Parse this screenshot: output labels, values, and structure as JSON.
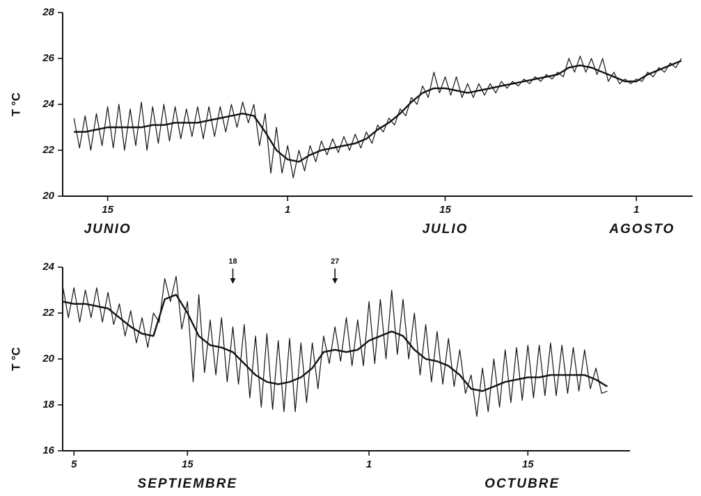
{
  "chart_data": [
    {
      "type": "line",
      "ylabel": "T °C",
      "xlim": [
        11,
        67
      ],
      "ylim": [
        20,
        28
      ],
      "xticks": [
        15,
        {
          "value": 31,
          "label": "1"
        },
        {
          "value": 45,
          "label": "15"
        },
        {
          "value": 62,
          "label": "1"
        }
      ],
      "yticks": [
        20,
        22,
        24,
        26,
        28
      ],
      "months": [
        {
          "value": 15,
          "label": "JUNIO"
        },
        {
          "value": 45,
          "label": "JULIO"
        },
        {
          "value": 62.5,
          "label": "AGOSTO"
        }
      ],
      "series": [
        {
          "color": "#111111",
          "x": [
            12,
            12.5,
            13,
            13.5,
            14,
            14.5,
            15,
            15.5,
            16,
            16.5,
            17,
            17.5,
            18,
            18.5,
            19,
            19.5,
            20,
            20.5,
            21,
            21.5,
            22,
            22.5,
            23,
            23.5,
            24,
            24.5,
            25,
            25.5,
            26,
            26.5,
            27,
            27.5,
            28,
            28.5,
            29,
            29.5,
            30,
            30.5,
            31,
            31.5,
            32,
            32.5,
            33,
            33.5,
            34,
            34.5,
            35,
            35.5,
            36,
            36.5,
            37,
            37.5,
            38,
            38.5,
            39,
            39.5,
            40,
            40.5,
            41,
            41.5,
            42,
            42.5,
            43,
            43.5,
            44,
            44.5,
            45,
            45.5,
            46,
            46.5,
            47,
            47.5,
            48,
            48.5,
            49,
            49.5,
            50,
            50.5,
            51,
            51.5,
            52,
            52.5,
            53,
            53.5,
            54,
            54.5,
            55,
            55.5,
            56,
            56.5,
            57,
            57.5,
            58,
            58.5,
            59,
            59.5,
            60,
            60.5,
            61,
            61.5,
            62,
            62.5,
            63,
            63.5,
            64,
            64.5,
            65,
            65.5,
            66
          ],
          "values": [
            23.4,
            22.1,
            23.5,
            22.0,
            23.6,
            22.2,
            23.9,
            22.1,
            24.0,
            22.0,
            23.8,
            22.2,
            24.1,
            22.0,
            23.9,
            22.3,
            24.0,
            22.4,
            23.9,
            22.5,
            23.8,
            22.6,
            23.9,
            22.5,
            23.9,
            22.6,
            23.9,
            22.8,
            24.0,
            23.0,
            24.1,
            23.2,
            24.0,
            22.2,
            23.6,
            21.0,
            23.0,
            21.0,
            22.2,
            20.8,
            22.0,
            21.1,
            22.2,
            21.5,
            22.4,
            21.8,
            22.5,
            21.9,
            22.6,
            22.0,
            22.7,
            22.1,
            22.8,
            22.3,
            23.1,
            22.8,
            23.4,
            23.1,
            23.8,
            23.5,
            24.3,
            24.0,
            24.8,
            24.3,
            25.4,
            24.5,
            25.2,
            24.4,
            25.2,
            24.3,
            24.9,
            24.3,
            24.9,
            24.4,
            24.9,
            24.5,
            25.0,
            24.7,
            25.0,
            24.8,
            25.1,
            24.9,
            25.2,
            25.0,
            25.3,
            25.1,
            25.4,
            25.2,
            26.0,
            25.4,
            26.1,
            25.4,
            26.0,
            25.3,
            26.0,
            25.0,
            25.4,
            24.9,
            25.1,
            24.9,
            25.1,
            25.0,
            25.4,
            25.2,
            25.6,
            25.4,
            25.8,
            25.6,
            26.0
          ]
        },
        {
          "color": "#111111",
          "x": [
            12,
            13,
            14,
            15,
            16,
            17,
            18,
            19,
            20,
            21,
            22,
            23,
            24,
            25,
            26,
            27,
            28,
            29,
            30,
            31,
            32,
            33,
            34,
            35,
            36,
            37,
            38,
            39,
            40,
            41,
            42,
            43,
            44,
            45,
            46,
            47,
            48,
            49,
            50,
            51,
            52,
            53,
            54,
            55,
            56,
            57,
            58,
            59,
            60,
            61,
            62,
            63,
            64,
            65,
            66
          ],
          "values": [
            22.8,
            22.8,
            22.9,
            23.0,
            23.0,
            23.0,
            23.0,
            23.1,
            23.1,
            23.2,
            23.2,
            23.2,
            23.3,
            23.4,
            23.5,
            23.6,
            23.5,
            22.8,
            22.0,
            21.6,
            21.5,
            21.8,
            22.0,
            22.1,
            22.2,
            22.3,
            22.5,
            22.9,
            23.2,
            23.6,
            24.1,
            24.5,
            24.7,
            24.7,
            24.6,
            24.5,
            24.6,
            24.7,
            24.8,
            24.9,
            25.0,
            25.1,
            25.2,
            25.3,
            25.6,
            25.7,
            25.6,
            25.4,
            25.2,
            25.0,
            25.0,
            25.3,
            25.5,
            25.7,
            25.9
          ]
        }
      ]
    },
    {
      "type": "line",
      "ylabel": "T °C",
      "xlim": [
        4,
        54
      ],
      "ylim": [
        16,
        24
      ],
      "xticks": [
        5,
        15,
        {
          "value": 31,
          "label": "1"
        },
        {
          "value": 45,
          "label": "15"
        }
      ],
      "yticks": [
        16,
        18,
        20,
        22,
        24
      ],
      "months": [
        {
          "value": 15,
          "label": "SEPTIEMBRE"
        },
        {
          "value": 44.5,
          "label": "OCTUBRE"
        }
      ],
      "annotations": [
        {
          "text": "18",
          "x": 19
        },
        {
          "text": "27",
          "x": 28
        }
      ],
      "series": [
        {
          "color": "#111111",
          "x": [
            4,
            4.5,
            5,
            5.5,
            6,
            6.5,
            7,
            7.5,
            8,
            8.5,
            9,
            9.5,
            10,
            10.5,
            11,
            11.5,
            12,
            12.5,
            13,
            13.5,
            14,
            14.5,
            15,
            15.5,
            16,
            16.5,
            17,
            17.5,
            18,
            18.5,
            19,
            19.5,
            20,
            20.5,
            21,
            21.5,
            22,
            22.5,
            23,
            23.5,
            24,
            24.5,
            25,
            25.5,
            26,
            26.5,
            27,
            27.5,
            28,
            28.5,
            29,
            29.5,
            30,
            30.5,
            31,
            31.5,
            32,
            32.5,
            33,
            33.5,
            34,
            34.5,
            35,
            35.5,
            36,
            36.5,
            37,
            37.5,
            38,
            38.5,
            39,
            39.5,
            40,
            40.5,
            41,
            41.5,
            42,
            42.5,
            43,
            43.5,
            44,
            44.5,
            45,
            45.5,
            46,
            46.5,
            47,
            47.5,
            48,
            48.5,
            49,
            49.5,
            50,
            50.5,
            51,
            51.5,
            52
          ],
          "values": [
            23.2,
            21.8,
            23.1,
            21.6,
            23.0,
            21.8,
            23.1,
            21.6,
            22.9,
            21.5,
            22.4,
            21.0,
            22.1,
            20.7,
            21.8,
            20.5,
            22.0,
            21.6,
            23.5,
            22.5,
            23.6,
            21.3,
            22.5,
            19.0,
            22.8,
            19.4,
            21.7,
            19.3,
            21.8,
            19.0,
            21.4,
            18.9,
            21.5,
            18.3,
            21.0,
            17.9,
            21.1,
            17.8,
            20.8,
            17.7,
            20.9,
            17.7,
            20.7,
            18.1,
            20.7,
            18.7,
            21.0,
            19.8,
            21.4,
            19.9,
            21.8,
            19.7,
            21.7,
            19.7,
            22.5,
            19.8,
            22.6,
            20.0,
            23.0,
            20.2,
            22.6,
            20.0,
            22.0,
            19.3,
            21.5,
            19.0,
            21.2,
            18.9,
            20.9,
            18.8,
            20.4,
            18.5,
            19.3,
            17.5,
            19.6,
            17.7,
            20.0,
            17.9,
            20.4,
            18.1,
            20.5,
            18.2,
            20.6,
            18.3,
            20.6,
            18.4,
            20.7,
            18.4,
            20.6,
            18.5,
            20.5,
            18.6,
            20.4,
            18.7,
            19.6,
            18.5,
            18.6
          ]
        },
        {
          "color": "#111111",
          "x": [
            4,
            5,
            6,
            7,
            8,
            9,
            10,
            11,
            12,
            13,
            14,
            15,
            16,
            17,
            18,
            19,
            20,
            21,
            22,
            23,
            24,
            25,
            26,
            27,
            28,
            29,
            30,
            31,
            32,
            33,
            34,
            35,
            36,
            37,
            38,
            39,
            40,
            41,
            42,
            43,
            44,
            45,
            46,
            47,
            48,
            49,
            50,
            51,
            52
          ],
          "values": [
            22.5,
            22.4,
            22.4,
            22.3,
            22.2,
            21.8,
            21.4,
            21.1,
            21.0,
            22.6,
            22.8,
            22.0,
            21.0,
            20.6,
            20.5,
            20.3,
            19.8,
            19.3,
            19.0,
            18.9,
            19.0,
            19.2,
            19.6,
            20.3,
            20.4,
            20.3,
            20.4,
            20.8,
            21.0,
            21.2,
            21.0,
            20.4,
            20.0,
            19.9,
            19.7,
            19.3,
            18.7,
            18.6,
            18.8,
            19.0,
            19.1,
            19.2,
            19.2,
            19.3,
            19.3,
            19.3,
            19.3,
            19.1,
            18.8
          ]
        }
      ]
    }
  ]
}
